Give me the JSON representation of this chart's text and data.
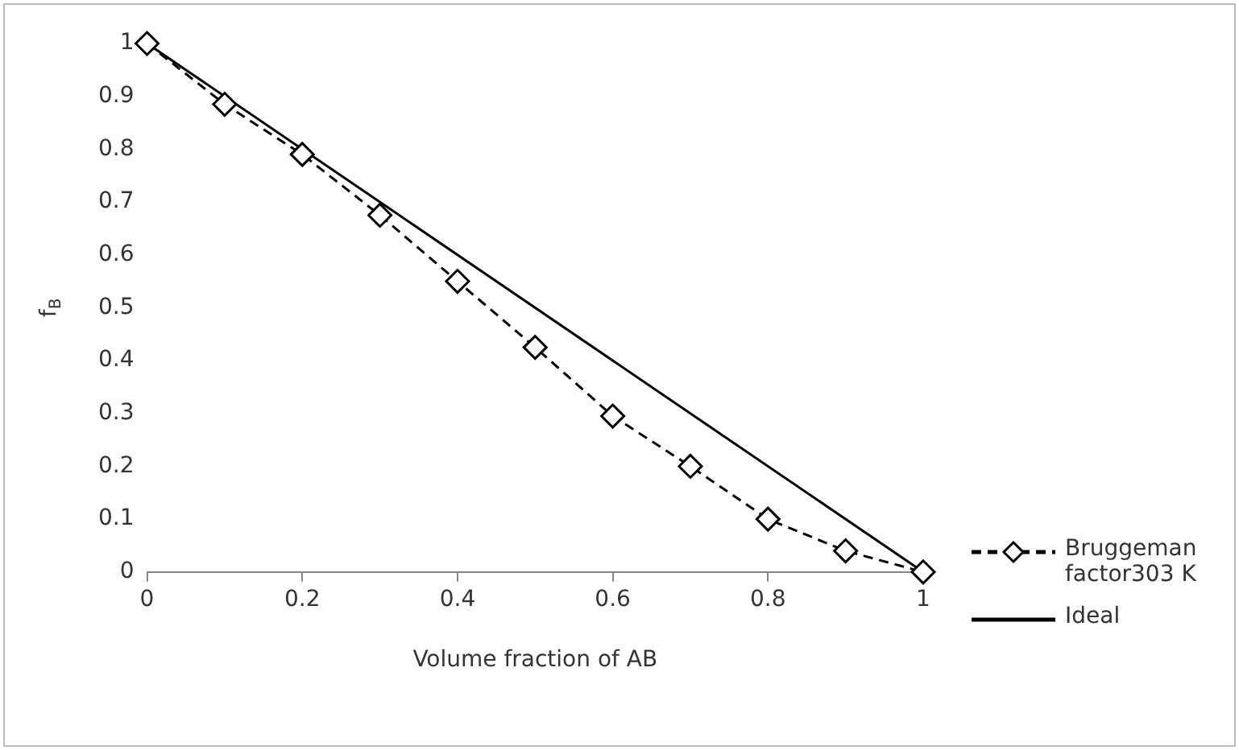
{
  "chart_data": {
    "type": "line",
    "xlabel": "Volume fraction of AB",
    "ylabel": "f$_{B}$",
    "x": [
      0,
      0.1,
      0.2,
      0.3,
      0.4,
      0.5,
      0.6,
      0.7,
      0.8,
      0.9,
      1
    ],
    "series": [
      {
        "name": "Bruggeman factor303 K",
        "color": "#000000",
        "marker": "diamond",
        "line_style": "dashed",
        "values": [
          1,
          0.885,
          0.79,
          0.675,
          0.55,
          0.425,
          0.295,
          0.2,
          0.1,
          0.04,
          0
        ]
      },
      {
        "name": "Ideal",
        "color": "#000000",
        "marker": "none",
        "line_style": "solid",
        "x": [
          0,
          1
        ],
        "values": [
          1,
          0
        ]
      }
    ],
    "xlim": [
      0,
      1
    ],
    "xticks": [
      0,
      0.2,
      0.4,
      0.6,
      0.8,
      1
    ],
    "ylim": [
      0,
      1
    ],
    "yticks": [
      0,
      0.1,
      0.2,
      0.3,
      0.4,
      0.5,
      0.6,
      0.7,
      0.8,
      0.9,
      1
    ],
    "grid": false,
    "legend": "right"
  }
}
